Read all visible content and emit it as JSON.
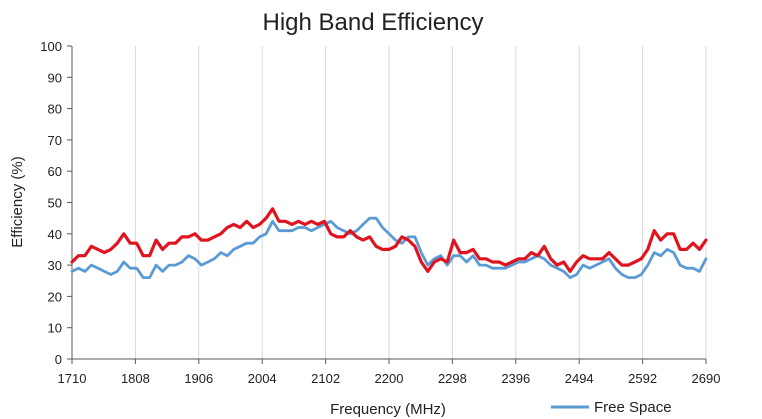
{
  "chart_data": {
    "type": "line",
    "title": "High Band Efficiency",
    "xlabel": "Frequency (MHz)",
    "ylabel": "Efficiency (%)",
    "xlim": [
      1710,
      2690
    ],
    "ylim": [
      0,
      100
    ],
    "x_ticks": [
      "1710",
      "1808",
      "1906",
      "2004",
      "2102",
      "2200",
      "2298",
      "2396",
      "2494",
      "2592",
      "2690"
    ],
    "y_ticks": [
      "0",
      "10",
      "20",
      "30",
      "40",
      "50",
      "60",
      "70",
      "80",
      "90",
      "100"
    ],
    "grid": "vertical",
    "legend_position": "bottom-right",
    "series": [
      {
        "name": "",
        "color": "#e0141e",
        "x": [
          1710,
          1720,
          1730,
          1740,
          1750,
          1760,
          1770,
          1780,
          1790,
          1800,
          1810,
          1820,
          1830,
          1840,
          1850,
          1860,
          1870,
          1880,
          1890,
          1900,
          1910,
          1920,
          1930,
          1940,
          1950,
          1960,
          1970,
          1980,
          1990,
          2000,
          2010,
          2020,
          2030,
          2040,
          2050,
          2060,
          2070,
          2080,
          2090,
          2100,
          2110,
          2120,
          2130,
          2140,
          2150,
          2160,
          2170,
          2180,
          2190,
          2200,
          2210,
          2220,
          2230,
          2240,
          2250,
          2260,
          2270,
          2280,
          2290,
          2300,
          2310,
          2320,
          2330,
          2340,
          2350,
          2360,
          2370,
          2380,
          2390,
          2400,
          2410,
          2420,
          2430,
          2440,
          2450,
          2460,
          2470,
          2480,
          2490,
          2500,
          2510,
          2520,
          2530,
          2540,
          2550,
          2560,
          2570,
          2580,
          2590,
          2600,
          2610,
          2620,
          2630,
          2640,
          2650,
          2660,
          2670,
          2680,
          2690
        ],
        "y": [
          31,
          33,
          33,
          36,
          35,
          34,
          35,
          37,
          40,
          37,
          37,
          33,
          33,
          38,
          35,
          37,
          37,
          39,
          39,
          40,
          38,
          38,
          39,
          40,
          42,
          43,
          42,
          44,
          42,
          43,
          45,
          48,
          44,
          44,
          43,
          44,
          43,
          44,
          43,
          44,
          40,
          39,
          39,
          41,
          39,
          38,
          39,
          36,
          35,
          35,
          36,
          39,
          38,
          36,
          31,
          28,
          31,
          32,
          31,
          38,
          34,
          34,
          35,
          32,
          32,
          31,
          31,
          30,
          31,
          32,
          32,
          34,
          33,
          36,
          32,
          30,
          31,
          28,
          31,
          33,
          32,
          32,
          32,
          34,
          32,
          30,
          30,
          31,
          32,
          35,
          41,
          38,
          40,
          40,
          35,
          35,
          37,
          35,
          38
        ]
      },
      {
        "name": "Free Space",
        "color": "#5b9bd5",
        "x": [
          1710,
          1720,
          1730,
          1740,
          1750,
          1760,
          1770,
          1780,
          1790,
          1800,
          1810,
          1820,
          1830,
          1840,
          1850,
          1860,
          1870,
          1880,
          1890,
          1900,
          1910,
          1920,
          1930,
          1940,
          1950,
          1960,
          1970,
          1980,
          1990,
          2000,
          2010,
          2020,
          2030,
          2040,
          2050,
          2060,
          2070,
          2080,
          2090,
          2100,
          2110,
          2120,
          2130,
          2140,
          2150,
          2160,
          2170,
          2180,
          2190,
          2200,
          2210,
          2220,
          2230,
          2240,
          2250,
          2260,
          2270,
          2280,
          2290,
          2300,
          2310,
          2320,
          2330,
          2340,
          2350,
          2360,
          2370,
          2380,
          2390,
          2400,
          2410,
          2420,
          2430,
          2440,
          2450,
          2460,
          2470,
          2480,
          2490,
          2500,
          2510,
          2520,
          2530,
          2540,
          2550,
          2560,
          2570,
          2580,
          2590,
          2600,
          2610,
          2620,
          2630,
          2640,
          2650,
          2660,
          2670,
          2680,
          2690
        ],
        "y": [
          28,
          29,
          28,
          30,
          29,
          28,
          27,
          28,
          31,
          29,
          29,
          26,
          26,
          30,
          28,
          30,
          30,
          31,
          33,
          32,
          30,
          31,
          32,
          34,
          33,
          35,
          36,
          37,
          37,
          39,
          40,
          44,
          41,
          41,
          41,
          42,
          42,
          41,
          42,
          43,
          44,
          42,
          41,
          40,
          41,
          43,
          45,
          45,
          42,
          40,
          38,
          37,
          39,
          39,
          34,
          30,
          32,
          33,
          30,
          33,
          33,
          31,
          33,
          30,
          30,
          29,
          29,
          29,
          30,
          31,
          31,
          32,
          33,
          32,
          30,
          29,
          28,
          26,
          27,
          30,
          29,
          30,
          31,
          32,
          29,
          27,
          26,
          26,
          27,
          30,
          34,
          33,
          35,
          34,
          30,
          29,
          29,
          28,
          32
        ]
      }
    ]
  }
}
